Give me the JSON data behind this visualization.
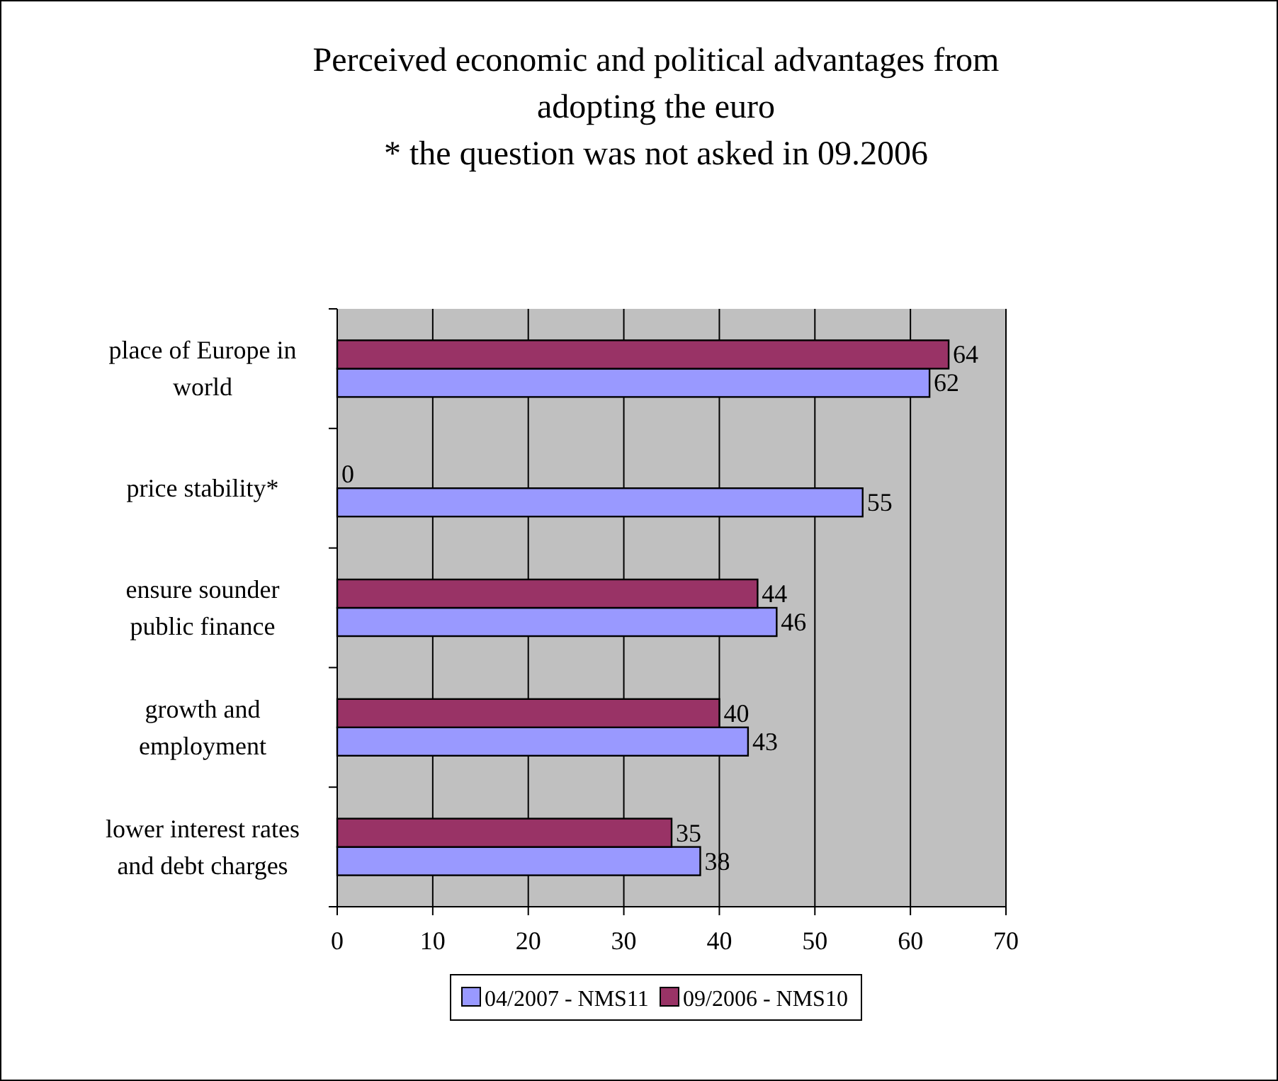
{
  "chart_data": {
    "type": "bar",
    "orientation": "horizontal",
    "title": "Perceived economic and political advantages from adopting the euro",
    "subtitle": "* the question was not asked in 09.2006",
    "categories": [
      "place of Europe in world",
      "price stability*",
      "ensure sounder public finance",
      "growth and employment",
      "lower interest rates and debt charges"
    ],
    "series": [
      {
        "name": "04/2007 - NMS11",
        "color": "#9999ff",
        "values": [
          62,
          55,
          46,
          43,
          38
        ]
      },
      {
        "name": "09/2006 - NMS10",
        "color": "#993366",
        "values": [
          64,
          0,
          44,
          40,
          35
        ]
      }
    ],
    "xlim": [
      0,
      70
    ],
    "xticks": [
      0,
      10,
      20,
      30,
      40,
      50,
      60,
      70
    ],
    "grid": "x",
    "legend": "bottom",
    "data_labels": true
  }
}
